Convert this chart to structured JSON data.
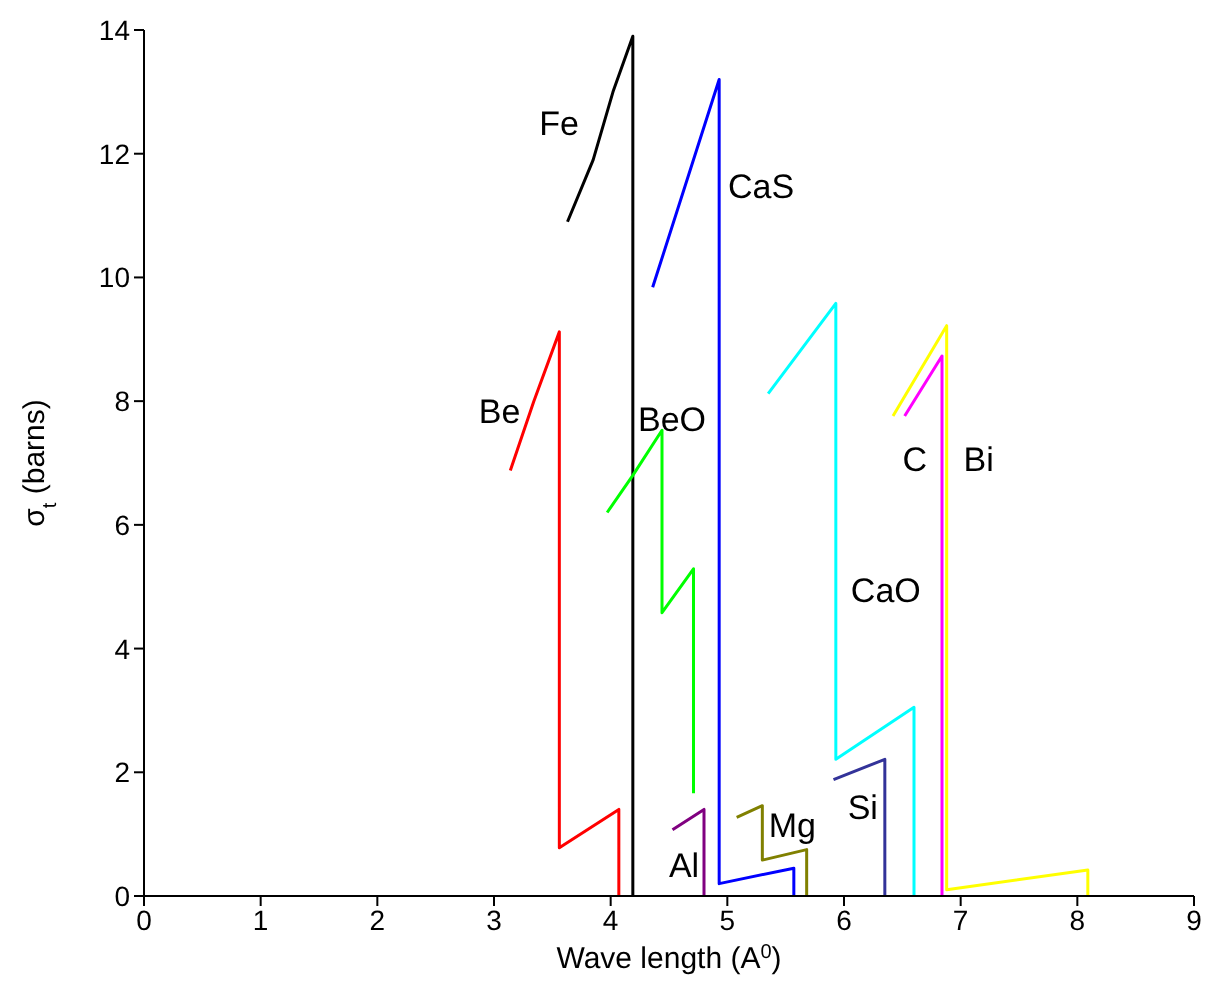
{
  "chart_data": {
    "type": "line",
    "xlabel": "Wave length (A$^{0}$)",
    "ylabel": "σ$_{t}$ (barns)",
    "xlim": [
      0,
      9
    ],
    "xticks": [
      0,
      1,
      2,
      3,
      4,
      5,
      6,
      7,
      8,
      9
    ],
    "ylim": [
      0,
      14
    ],
    "yticks": [
      0,
      2,
      4,
      6,
      8,
      10,
      12,
      14
    ],
    "marker": "none",
    "series": [
      {
        "name": "Fe",
        "color": "#000000",
        "x": [
          3.63,
          3.85,
          4.02,
          4.19,
          4.19
        ],
        "values": [
          10.9,
          11.9,
          13.0,
          13.9,
          0
        ]
      },
      {
        "name": "Be",
        "color": "#ff0000",
        "x": [
          3.14,
          3.34,
          3.56,
          3.56,
          4.07,
          4.07
        ],
        "values": [
          6.88,
          7.99,
          9.12,
          0.78,
          1.4,
          0
        ]
      },
      {
        "name": "BeO",
        "color": "#00ff00",
        "x": [
          3.97,
          4.19,
          4.44,
          4.44,
          4.71,
          4.71
        ],
        "values": [
          6.2,
          6.8,
          7.53,
          4.58,
          5.29,
          1.66
        ]
      },
      {
        "name": "Al",
        "color": "#800080",
        "x": [
          4.53,
          4.8,
          4.8
        ],
        "values": [
          1.07,
          1.4,
          0
        ]
      },
      {
        "name": "CaS",
        "color": "#0000ff",
        "x": [
          4.36,
          4.93,
          4.93,
          5.57,
          5.57
        ],
        "values": [
          9.84,
          13.2,
          0.2,
          0.45,
          0
        ]
      },
      {
        "name": "Mg",
        "color": "#808000",
        "x": [
          5.08,
          5.3,
          5.3,
          5.68,
          5.68
        ],
        "values": [
          1.27,
          1.46,
          0.58,
          0.75,
          0
        ]
      },
      {
        "name": "CaO",
        "color": "#00ffff",
        "x": [
          5.35,
          5.93,
          5.93,
          6.6,
          6.6
        ],
        "values": [
          8.12,
          9.58,
          2.21,
          3.05,
          0
        ]
      },
      {
        "name": "Si",
        "color": "#333399",
        "x": [
          5.91,
          6.35,
          6.35
        ],
        "values": [
          1.88,
          2.21,
          0
        ]
      },
      {
        "name": "C",
        "color": "#ff00ff",
        "x": [
          6.52,
          6.84,
          6.84
        ],
        "values": [
          7.76,
          8.73,
          0
        ]
      },
      {
        "name": "Bi",
        "color": "#ffff00",
        "x": [
          6.42,
          6.88,
          6.88,
          8.09,
          8.09
        ],
        "values": [
          7.76,
          9.22,
          0.1,
          0.42,
          0
        ]
      }
    ]
  }
}
